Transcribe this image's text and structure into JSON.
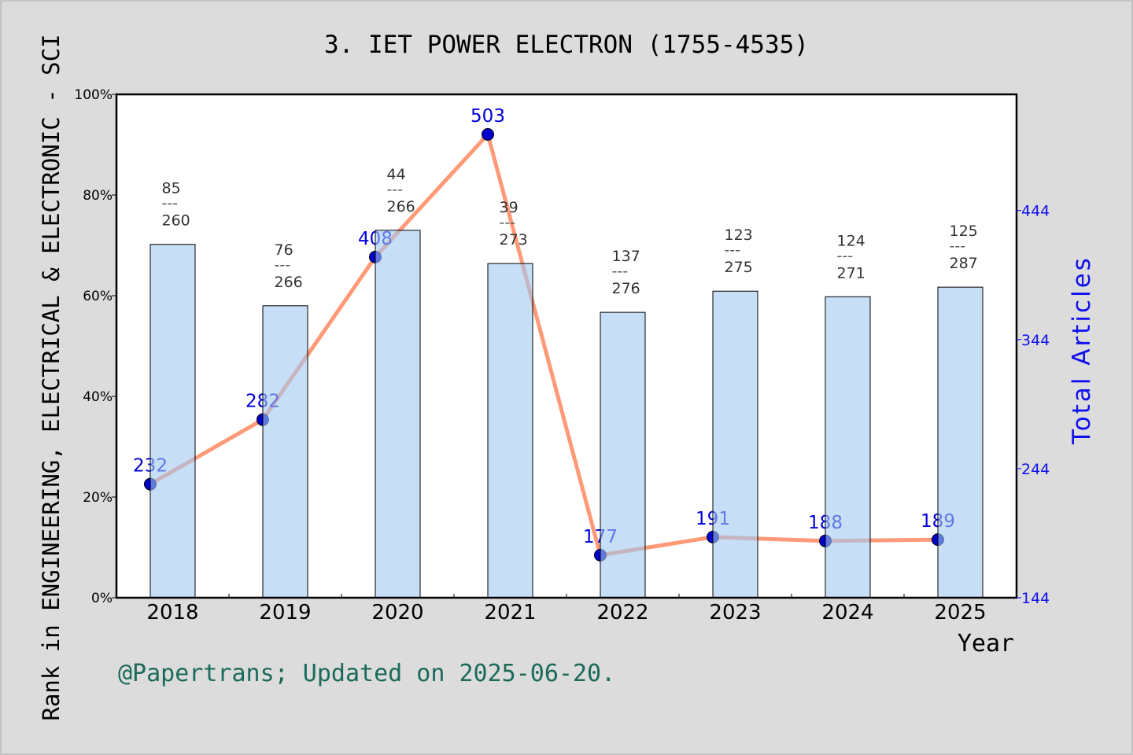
{
  "chart_data": {
    "type": "bar+line",
    "title": "3.  IET POWER ELECTRON (1755-4535)",
    "xlabel": "Year",
    "ylabel_left": "Rank in ENGINEERING, ELECTRICAL & ELECTRONIC - SCI",
    "ylabel_right": "Total Articles",
    "categories": [
      "2018",
      "2019",
      "2020",
      "2021",
      "2022",
      "2023",
      "2024",
      "2025"
    ],
    "left_axis": {
      "ylim": [
        0,
        100
      ],
      "ticks": [
        "0%",
        "20%",
        "40%",
        "60%",
        "80%",
        "100%"
      ],
      "tick_values": [
        0,
        20,
        40,
        60,
        80,
        100
      ]
    },
    "right_axis": {
      "ylim": [
        144,
        534
      ],
      "ticks": [
        "144",
        "244",
        "344",
        "444"
      ],
      "tick_values": [
        144,
        244,
        344,
        444
      ]
    },
    "bars": {
      "values_percent": [
        70.2,
        58.0,
        73.0,
        66.4,
        56.7,
        60.9,
        59.8,
        61.7
      ],
      "rank": [
        "85",
        "76",
        "44",
        "39",
        "137",
        "123",
        "124",
        "125"
      ],
      "total": [
        "260",
        "266",
        "266",
        "273",
        "276",
        "275",
        "271",
        "287"
      ],
      "separator": "---",
      "color": "#c5dff5"
    },
    "line": {
      "values": [
        232,
        282,
        408,
        503,
        177,
        191,
        188,
        189
      ],
      "labels": [
        "232",
        "282",
        "408",
        "503",
        "177",
        "191",
        "188",
        "189"
      ],
      "line_color": "#ff9a78",
      "marker_color": "#0000cc",
      "label_color": "#0000dd"
    },
    "grid": false
  },
  "footer": "@Papertrans; Updated on 2025-06-20."
}
